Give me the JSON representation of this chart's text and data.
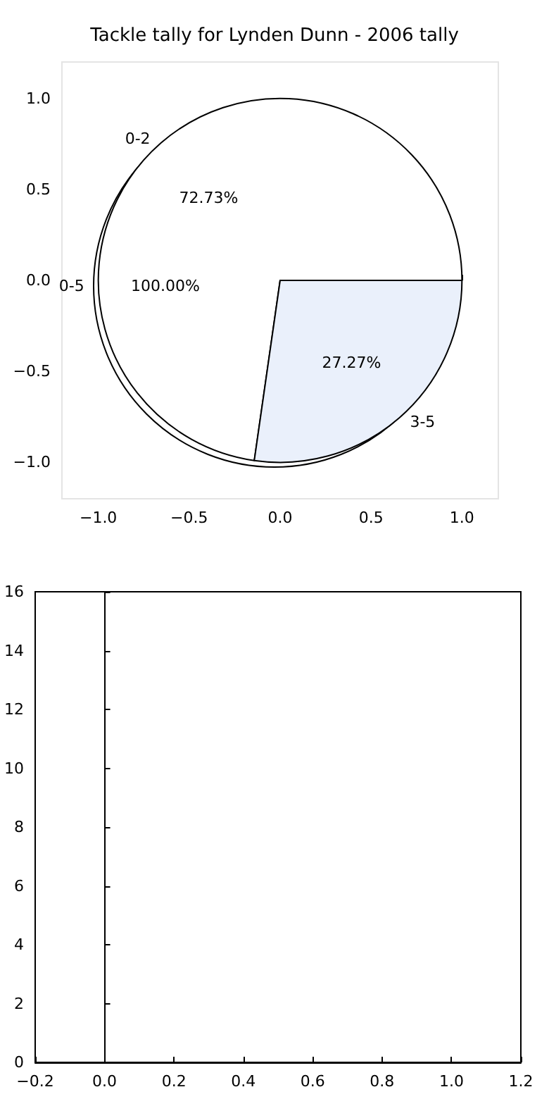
{
  "chart_data": [
    {
      "type": "scatter",
      "title": "Tackle tally for Lynden Dunn - 2006 tally",
      "xlim": [
        -1.2,
        1.2
      ],
      "ylim": [
        -1.2,
        1.2
      ],
      "xticks": [
        {
          "value": -1,
          "label": "−1.0"
        },
        {
          "value": -0.5,
          "label": "−0.5"
        },
        {
          "value": 0,
          "label": "0.0"
        },
        {
          "value": 0.5,
          "label": "0.5"
        },
        {
          "value": 1,
          "label": "1.0"
        }
      ],
      "yticks": [
        {
          "value": -1,
          "label": "−1.0"
        },
        {
          "value": -0.5,
          "label": "−0.5"
        },
        {
          "value": 0,
          "label": "0.0"
        },
        {
          "value": 0.5,
          "label": "0.5"
        },
        {
          "value": 1,
          "label": "1.0"
        }
      ]
    },
    {
      "type": "pie",
      "categories": [
        "0-2",
        "3-5"
      ],
      "values": [
        72.73,
        27.27
      ],
      "colors": [
        "#ffffff",
        "#eaf0fb"
      ],
      "value_labels": [
        "72.73%",
        "27.27%"
      ],
      "annotations": [
        "0-5",
        "100.00%"
      ]
    },
    {
      "type": "scatter",
      "xlim": [
        -0.2,
        1.2
      ],
      "ylim": [
        0,
        16
      ],
      "xticks": [
        {
          "value": -0.2,
          "label": "−0.2"
        },
        {
          "value": 0,
          "label": "0.0"
        },
        {
          "value": 0.2,
          "label": "0.2"
        },
        {
          "value": 0.4,
          "label": "0.4"
        },
        {
          "value": 0.6,
          "label": "0.6"
        },
        {
          "value": 0.8,
          "label": "0.8"
        },
        {
          "value": 1,
          "label": "1.0"
        },
        {
          "value": 1.2,
          "label": "1.2"
        }
      ],
      "yticks": [
        0,
        2,
        4,
        6,
        8,
        10,
        12,
        14,
        16
      ]
    }
  ]
}
